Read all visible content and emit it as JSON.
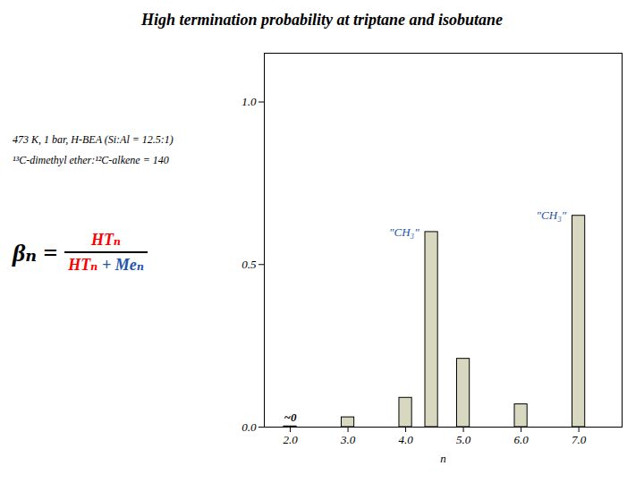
{
  "chart_data": {
    "type": "bar",
    "title": "High termination probability at triptane and isobutane",
    "x": [
      2,
      3,
      4,
      4.45,
      5,
      6,
      7
    ],
    "values": [
      0.002,
      0.03,
      0.09,
      0.6,
      0.21,
      0.07,
      0.65
    ],
    "value_labels": [
      "~0",
      null,
      null,
      null,
      null,
      null,
      null
    ],
    "color": "#D8D8C0",
    "xlabel": "n",
    "xlim": [
      1.55,
      7.75
    ],
    "xticks": [
      2,
      3,
      4,
      5,
      6,
      7
    ],
    "ylim": [
      0.0,
      1.15
    ],
    "yticks": [
      {
        "value": 0.0,
        "label": "0.0"
      },
      {
        "value": 0.5,
        "label": "0.5"
      },
      {
        "value": 1.0,
        "label": "1.0"
      }
    ],
    "annotations": [
      {
        "text": "\"CH₃\"",
        "x": 4.45,
        "color": "#2255AA"
      },
      {
        "text": "\"CH₃\"",
        "x": 7,
        "color": "#2255AA"
      },
      {
        "text": "473 K, 1 bar, H-BEA (Si:Al = 12.5:1)"
      },
      {
        "text": "¹³C-dimethyl ether:¹²C-alkene = 140"
      }
    ],
    "formula": {
      "lhs": "βₙ =",
      "numerator": [
        {
          "text": "HTₙ",
          "color": "red"
        }
      ],
      "denominator": [
        {
          "text": "HTₙ",
          "color": "red"
        },
        {
          "text": " + Meₙ",
          "color": "#2255AA"
        }
      ]
    }
  }
}
